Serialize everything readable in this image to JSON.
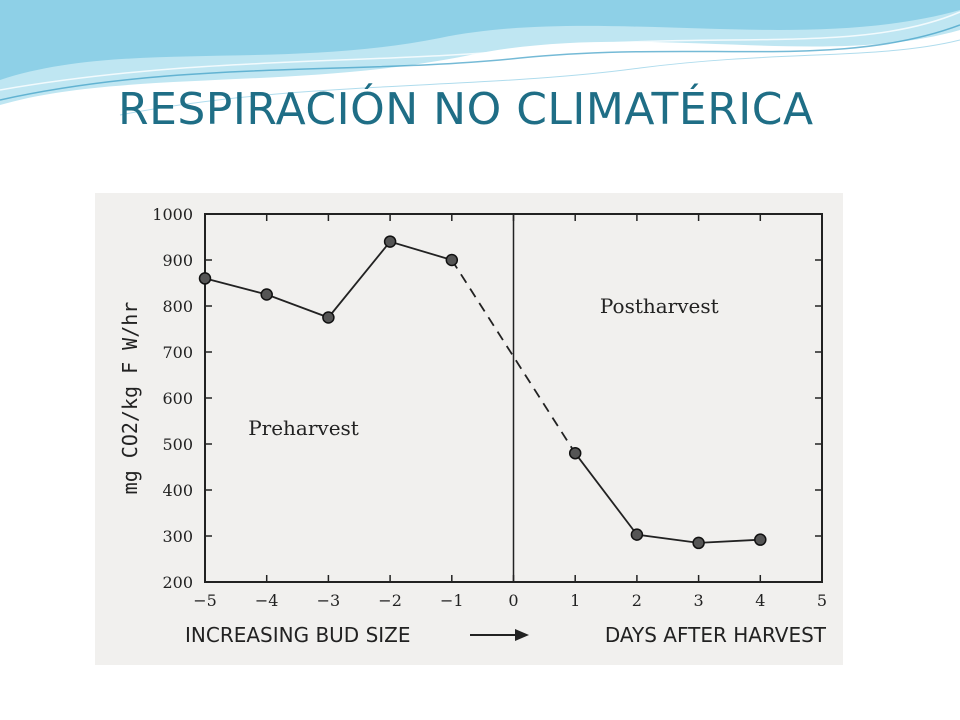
{
  "slide": {
    "title": "RESPIRACIÓN NO CLIMATÉRICA",
    "title_color": "#1f6e86",
    "accent_colors": [
      "#7ec8e3",
      "#bfe6f2",
      "#3a9cc4"
    ]
  },
  "chart_data": {
    "type": "line",
    "ylabel": "mg CO2/kg F W/hr",
    "x_captions": [
      "INCREASING BUD SIZE",
      "DAYS AFTER HARVEST"
    ],
    "region_labels": [
      "Preharvest",
      "Postharvest"
    ],
    "xlim": [
      -5,
      5
    ],
    "ylim": [
      200,
      1000
    ],
    "xticks": [
      -5,
      -4,
      -3,
      -2,
      -1,
      0,
      1,
      2,
      3,
      4,
      5
    ],
    "xtick_labels": [
      "−5",
      "−4",
      "−3",
      "−2",
      "−1",
      "0",
      "1",
      "2",
      "3",
      "4",
      "5"
    ],
    "yticks": [
      200,
      300,
      400,
      500,
      600,
      700,
      800,
      900,
      1000
    ],
    "ytick_labels": [
      "200",
      "300",
      "400",
      "500",
      "600",
      "700",
      "800",
      "900",
      "1000"
    ],
    "divider_x": 0,
    "series": [
      {
        "points": [
          [
            -5,
            860
          ],
          [
            -4,
            825
          ],
          [
            -3,
            775
          ],
          [
            -2,
            940
          ],
          [
            -1,
            900
          ]
        ],
        "style": "solid"
      },
      {
        "points": [
          [
            1,
            480
          ],
          [
            2,
            303
          ],
          [
            3,
            285
          ],
          [
            4,
            292
          ]
        ],
        "style": "solid"
      }
    ],
    "connector": {
      "from": [
        -1,
        900
      ],
      "to": [
        1,
        480
      ],
      "style": "dashed"
    },
    "grid": false,
    "legend": "none"
  }
}
